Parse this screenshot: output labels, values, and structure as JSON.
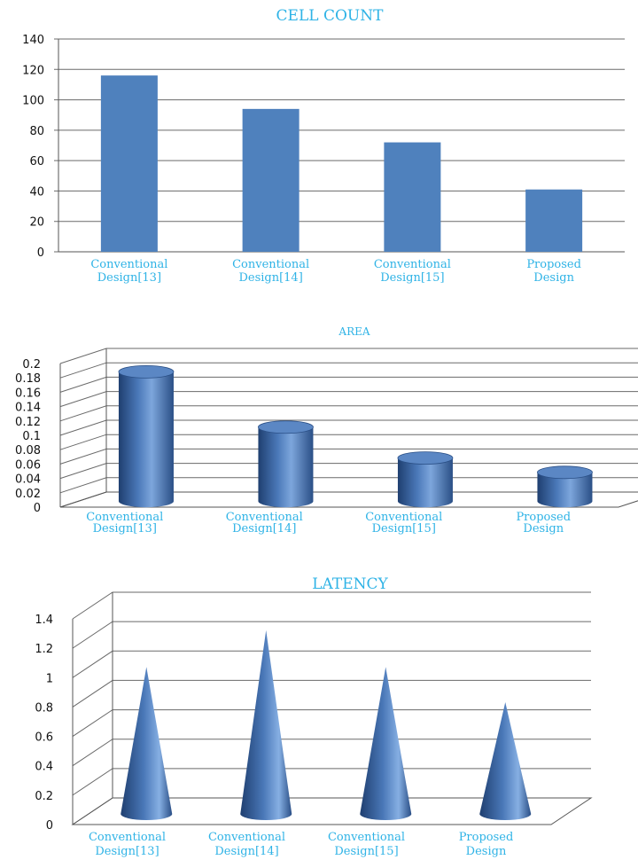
{
  "chart_data": [
    {
      "type": "bar",
      "title": "CELL COUNT",
      "categories": [
        [
          "Conventional",
          "Design[13]"
        ],
        [
          "Conventional",
          "Design[14]"
        ],
        [
          "Conventional",
          "Design[15]"
        ],
        [
          "Proposed",
          "Design"
        ]
      ],
      "values": [
        116,
        94,
        72,
        41
      ],
      "ylim": [
        0,
        140
      ],
      "yticks": [
        "0",
        "20",
        "40",
        "60",
        "80",
        "100",
        "120",
        "140"
      ],
      "grid": true,
      "color": "#4f81bd"
    },
    {
      "type": "bar",
      "style": "3d-cylinder",
      "title": "AREA",
      "categories": [
        [
          "Conventional",
          "Design[13]"
        ],
        [
          "Conventional",
          "Design[14]"
        ],
        [
          "Conventional",
          "Design[15]"
        ],
        [
          "Proposed",
          "Design"
        ]
      ],
      "values": [
        0.18,
        0.103,
        0.06,
        0.04
      ],
      "ylim": [
        0,
        0.2
      ],
      "yticks": [
        "0",
        "0.02",
        "0.04",
        "0.06",
        "0.08",
        "0.1",
        "0.12",
        "0.14",
        "0.16",
        "0.18",
        "0.2"
      ],
      "grid": true,
      "color": "#4f81bd"
    },
    {
      "type": "bar",
      "style": "3d-cone",
      "title": "LATENCY",
      "categories": [
        [
          "Conventional",
          "Design[13]"
        ],
        [
          "Conventional",
          "Design[14]"
        ],
        [
          "Conventional",
          "Design[15]"
        ],
        [
          "Proposed",
          "Design"
        ]
      ],
      "values": [
        1.0,
        1.25,
        1.0,
        0.76
      ],
      "ylim": [
        0,
        1.4
      ],
      "yticks": [
        "0",
        "0.2",
        "0.4",
        "0.6",
        "0.8",
        "1",
        "1.2",
        "1.4"
      ],
      "grid": true,
      "color": "#4f81bd"
    }
  ]
}
